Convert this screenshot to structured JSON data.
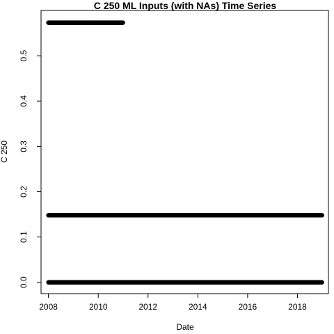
{
  "chart_data": {
    "type": "scatter",
    "title": "C 250 ML Inputs (with NAs) Time Series",
    "xlabel": "Date",
    "ylabel": "C 250",
    "xlim": [
      "2007-09-15",
      "2019-03-31"
    ],
    "ylim": [
      -0.025,
      0.6
    ],
    "x_ticks": [
      "2008",
      "2010",
      "2012",
      "2014",
      "2016",
      "2018"
    ],
    "y_ticks": [
      "0.0",
      "0.1",
      "0.2",
      "0.3",
      "0.4",
      "0.5"
    ],
    "series": [
      {
        "x_start": "2008-01-01",
        "x_end": "2011-01-01",
        "y": 0.573
      },
      {
        "x_start": "2008-01-01",
        "x_end": "2012-02-15",
        "y": 0.148
      },
      {
        "x_start": "2012-03-01",
        "x_end": "2018-12-31",
        "y": 0.148
      },
      {
        "x_start": "2008-01-01",
        "x_end": "2018-12-31",
        "y": 0.0
      }
    ],
    "grid": false,
    "point_color": "#000000"
  }
}
